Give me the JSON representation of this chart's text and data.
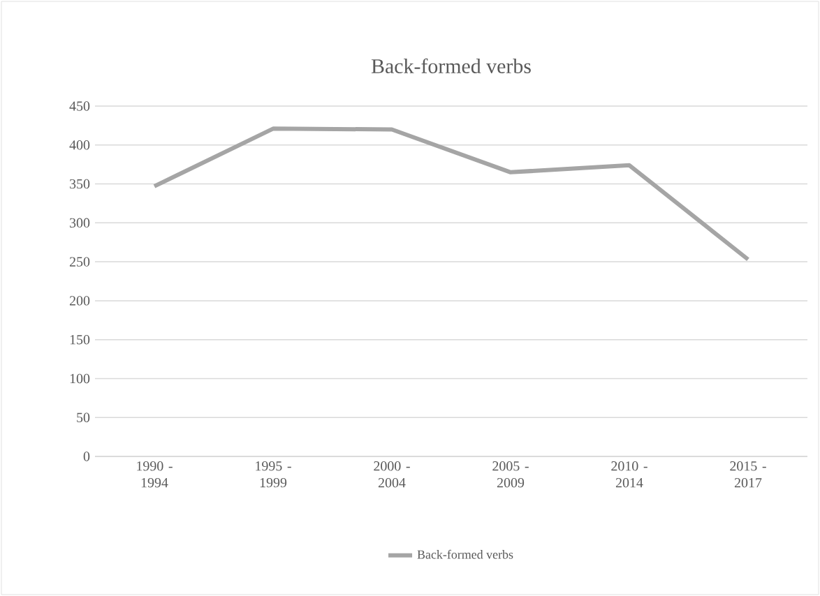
{
  "chart_data": {
    "type": "line",
    "title": "Back-formed verbs",
    "categories": [
      "1990 - 1994",
      "1995 - 1999",
      "2000 - 2004",
      "2005 - 2009",
      "2010 - 2014",
      "2015 - 2017"
    ],
    "series": [
      {
        "name": "Back-formed verbs",
        "color": "#a5a5a5",
        "values": [
          347,
          421,
          420,
          365,
          374,
          253
        ]
      }
    ],
    "ylim": [
      0,
      450
    ],
    "yticks": [
      0,
      50,
      100,
      150,
      200,
      250,
      300,
      350,
      400,
      450
    ],
    "grid": "y",
    "legend": "bottom",
    "marker": "none",
    "line_style": "solid"
  }
}
